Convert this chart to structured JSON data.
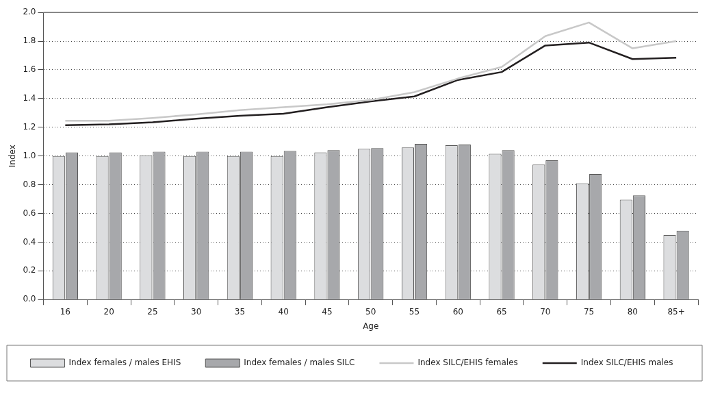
{
  "chart_data": {
    "type": "bar",
    "xlabel": "Age",
    "ylabel": "Index",
    "categories": [
      "16",
      "20",
      "25",
      "30",
      "35",
      "40",
      "45",
      "50",
      "55",
      "60",
      "65",
      "70",
      "75",
      "80",
      "85+"
    ],
    "series": [
      {
        "name": "Index females / males EHIS",
        "color": "#dcdddf",
        "values": [
          1.0,
          1.0,
          1.005,
          1.0,
          1.0,
          1.0,
          1.025,
          1.05,
          1.06,
          1.075,
          1.015,
          0.94,
          0.81,
          0.695,
          0.45
        ]
      },
      {
        "name": "Index females / males SILC",
        "color": "#a7a8ab",
        "values": [
          1.025,
          1.025,
          1.03,
          1.03,
          1.03,
          1.035,
          1.04,
          1.055,
          1.085,
          1.08,
          1.04,
          0.97,
          0.875,
          0.725,
          0.48
        ]
      },
      {
        "name": "Index SILC/EHIS females",
        "type": "line",
        "color": "#c8c8c8",
        "values": [
          1.245,
          1.245,
          1.265,
          1.29,
          1.32,
          1.34,
          1.36,
          1.39,
          1.445,
          1.54,
          1.62,
          1.835,
          1.93,
          1.75,
          1.8
        ]
      },
      {
        "name": "Index SILC/EHIS males",
        "type": "line",
        "color": "#231f20",
        "values": [
          1.215,
          1.22,
          1.235,
          1.26,
          1.28,
          1.295,
          1.34,
          1.38,
          1.415,
          1.53,
          1.585,
          1.77,
          1.79,
          1.675,
          1.685
        ]
      }
    ],
    "ylim": [
      0,
      2.0
    ],
    "yticks": [
      {
        "value": 0,
        "label": "0.0"
      },
      {
        "value": 0.2,
        "label": "0.2"
      },
      {
        "value": 0.4,
        "label": "0.4"
      },
      {
        "value": 0.6,
        "label": "0.6"
      },
      {
        "value": 0.8,
        "label": "0.8"
      },
      {
        "value": 1.0,
        "label": "1.0"
      },
      {
        "value": 1.2,
        "label": "1.2"
      },
      {
        "value": 1.4,
        "label": "1.4"
      },
      {
        "value": 1.6,
        "label": "1.6"
      },
      {
        "value": 1.8,
        "label": "1.8"
      },
      {
        "value": 2.0,
        "label": "2.0"
      }
    ],
    "grid": "y",
    "legend": "bottom",
    "marker": "none",
    "line_style": "solid"
  }
}
